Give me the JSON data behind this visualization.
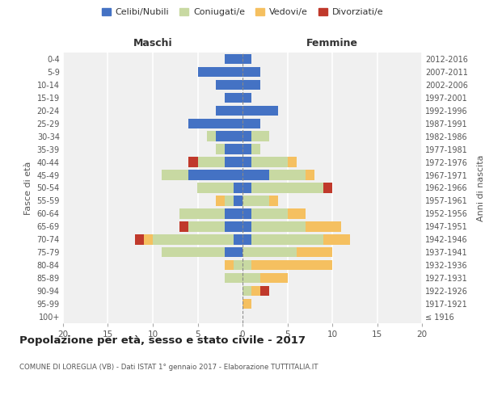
{
  "age_groups": [
    "100+",
    "95-99",
    "90-94",
    "85-89",
    "80-84",
    "75-79",
    "70-74",
    "65-69",
    "60-64",
    "55-59",
    "50-54",
    "45-49",
    "40-44",
    "35-39",
    "30-34",
    "25-29",
    "20-24",
    "15-19",
    "10-14",
    "5-9",
    "0-4"
  ],
  "birth_years": [
    "≤ 1916",
    "1917-1921",
    "1922-1926",
    "1927-1931",
    "1932-1936",
    "1937-1941",
    "1942-1946",
    "1947-1951",
    "1952-1956",
    "1957-1961",
    "1962-1966",
    "1967-1971",
    "1972-1976",
    "1977-1981",
    "1982-1986",
    "1987-1991",
    "1992-1996",
    "1997-2001",
    "2002-2006",
    "2007-2011",
    "2012-2016"
  ],
  "males": {
    "celibi": [
      0,
      0,
      0,
      0,
      0,
      2,
      1,
      2,
      2,
      1,
      1,
      6,
      2,
      2,
      3,
      6,
      3,
      2,
      3,
      5,
      2
    ],
    "coniugati": [
      0,
      0,
      0,
      2,
      1,
      7,
      9,
      4,
      5,
      1,
      4,
      3,
      3,
      1,
      1,
      0,
      0,
      0,
      0,
      0,
      0
    ],
    "vedovi": [
      0,
      0,
      0,
      0,
      1,
      0,
      1,
      0,
      0,
      1,
      0,
      0,
      0,
      0,
      0,
      0,
      0,
      0,
      0,
      0,
      0
    ],
    "divorziati": [
      0,
      0,
      0,
      0,
      0,
      0,
      1,
      1,
      0,
      0,
      0,
      0,
      1,
      0,
      0,
      0,
      0,
      0,
      0,
      0,
      0
    ]
  },
  "females": {
    "nubili": [
      0,
      0,
      0,
      0,
      0,
      0,
      1,
      1,
      1,
      0,
      1,
      3,
      1,
      1,
      1,
      2,
      4,
      1,
      2,
      2,
      1
    ],
    "coniugate": [
      0,
      0,
      1,
      2,
      1,
      6,
      8,
      6,
      4,
      3,
      8,
      4,
      4,
      1,
      2,
      0,
      0,
      0,
      0,
      0,
      0
    ],
    "vedove": [
      0,
      1,
      1,
      3,
      9,
      4,
      3,
      4,
      2,
      1,
      0,
      1,
      1,
      0,
      0,
      0,
      0,
      0,
      0,
      0,
      0
    ],
    "divorziate": [
      0,
      0,
      1,
      0,
      0,
      0,
      0,
      0,
      0,
      0,
      1,
      0,
      0,
      0,
      0,
      0,
      0,
      0,
      0,
      0,
      0
    ]
  },
  "colors": {
    "celibi": "#4472c4",
    "coniugati": "#c8d9a2",
    "vedovi": "#f5c060",
    "divorziati": "#c0392b"
  },
  "title": "Popolazione per età, sesso e stato civile - 2017",
  "subtitle": "COMUNE DI LOREGLIA (VB) - Dati ISTAT 1° gennaio 2017 - Elaborazione TUTTITALIA.IT",
  "xlabel_left": "Maschi",
  "xlabel_right": "Femmine",
  "ylabel_left": "Fasce di età",
  "ylabel_right": "Anni di nascita",
  "xlim": 20,
  "legend_labels": [
    "Celibi/Nubili",
    "Coniugati/e",
    "Vedovi/e",
    "Divorziati/e"
  ],
  "background_color": "#ffffff",
  "plot_bg_color": "#f0f0f0"
}
